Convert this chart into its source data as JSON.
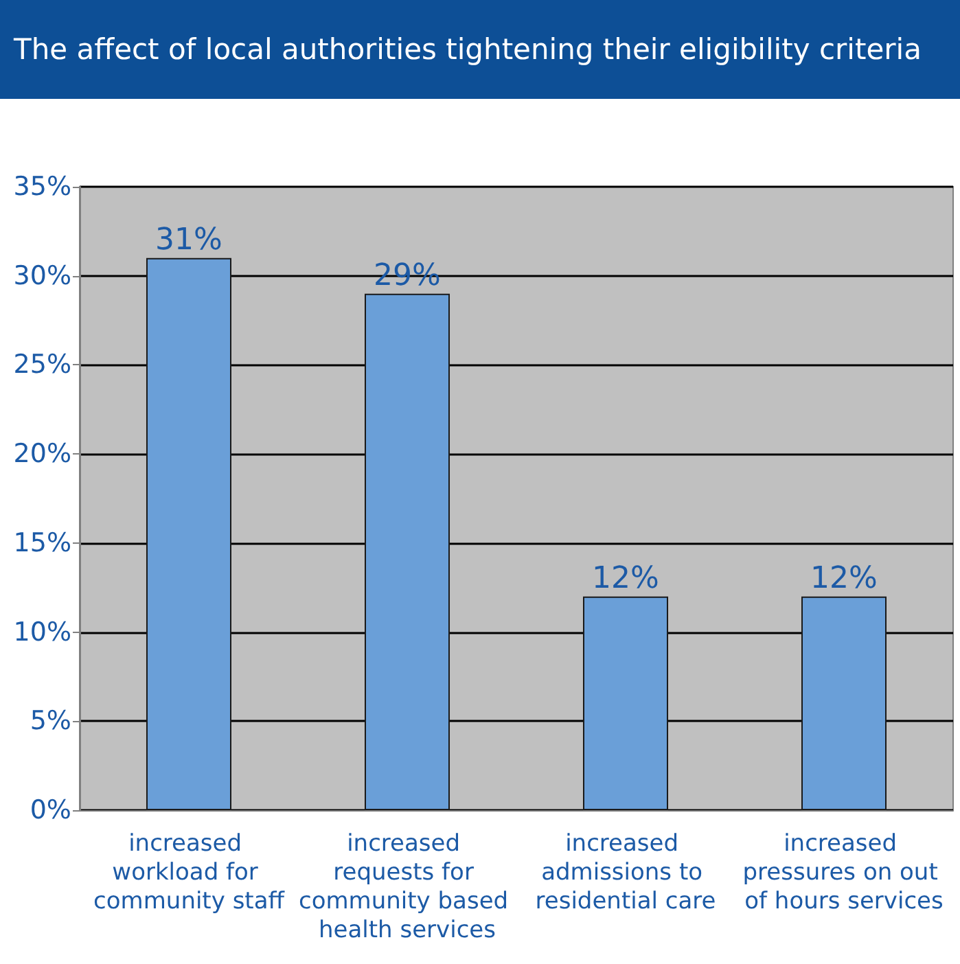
{
  "chart_data": {
    "type": "bar",
    "title": "The affect of local authorities tightening their eligibility criteria",
    "categories": [
      "increased workload for community staff",
      "increased requests for community based health services",
      "increased admissions to residential care",
      "increased pressures on out of hours services"
    ],
    "values": [
      31,
      29,
      12,
      12
    ],
    "value_labels": [
      "31%",
      "29%",
      "12%",
      "12%"
    ],
    "color": "#6a9fd8",
    "ylim": [
      0,
      35
    ],
    "yticks": [
      {
        "value": 0,
        "label": "0%"
      },
      {
        "value": 5,
        "label": "5%"
      },
      {
        "value": 10,
        "label": "10%"
      },
      {
        "value": 15,
        "label": "15%"
      },
      {
        "value": 20,
        "label": "20%"
      },
      {
        "value": 25,
        "label": "25%"
      },
      {
        "value": 30,
        "label": "30%"
      },
      {
        "value": 35,
        "label": "35%"
      }
    ],
    "grid": "y"
  }
}
